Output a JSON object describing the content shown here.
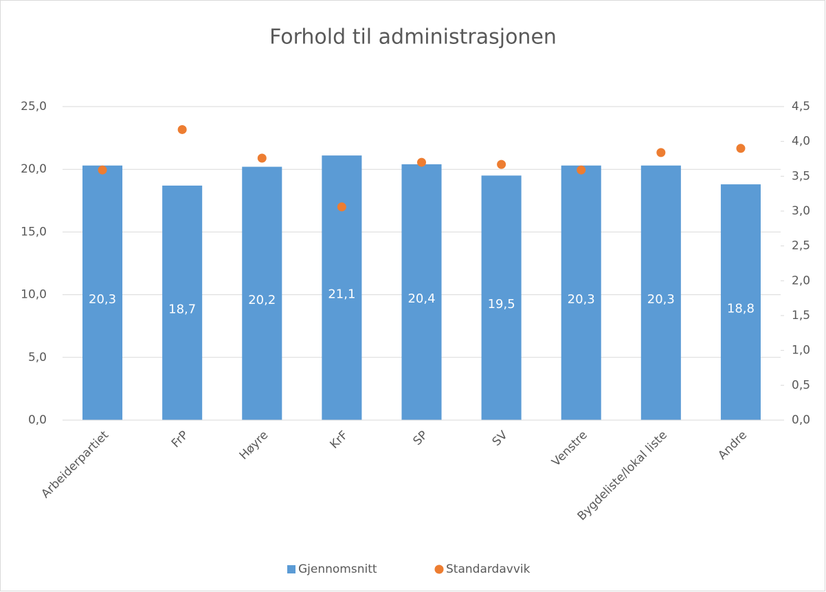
{
  "chart_data": {
    "type": "bar",
    "title": "Forhold til administrasjonen",
    "categories": [
      "Arbeiderpartiet",
      "FrP",
      "Høyre",
      "KrF",
      "SP",
      "SV",
      "Venstre",
      "Bygdeliste/lokal liste",
      "Andre"
    ],
    "series": [
      {
        "name": "Gjennomsnitt",
        "type": "bar",
        "color": "#5b9bd5",
        "values": [
          20.3,
          18.7,
          20.2,
          21.1,
          20.4,
          19.5,
          20.3,
          20.3,
          18.8
        ],
        "value_labels": [
          "20,3",
          "18,7",
          "20,2",
          "21,1",
          "20,4",
          "19,5",
          "20,3",
          "20,3",
          "18,8"
        ]
      },
      {
        "name": "Standardavvik",
        "type": "scatter",
        "axis": "y2",
        "color": "#ed7d31",
        "values": [
          3.59,
          4.17,
          3.76,
          3.06,
          3.7,
          3.67,
          3.59,
          3.84,
          3.9
        ]
      }
    ],
    "ylim": [
      0,
      25
    ],
    "yticks": [
      {
        "value": 0,
        "label": "0,0"
      },
      {
        "value": 5,
        "label": "5,0"
      },
      {
        "value": 10,
        "label": "10,0"
      },
      {
        "value": 15,
        "label": "15,0"
      },
      {
        "value": 20,
        "label": "20,0"
      },
      {
        "value": 25,
        "label": "25,0"
      }
    ],
    "y2lim": [
      0,
      4.5
    ],
    "y2ticks": [
      {
        "value": 0,
        "label": "0,0"
      },
      {
        "value": 0.5,
        "label": "0,5"
      },
      {
        "value": 1,
        "label": "1,0"
      },
      {
        "value": 1.5,
        "label": "1,5"
      },
      {
        "value": 2,
        "label": "2,0"
      },
      {
        "value": 2.5,
        "label": "2,5"
      },
      {
        "value": 3,
        "label": "3,0"
      },
      {
        "value": 3.5,
        "label": "3,5"
      },
      {
        "value": 4,
        "label": "4,0"
      },
      {
        "value": 4.5,
        "label": "4,5"
      }
    ],
    "grid": true,
    "legend": "bottom"
  }
}
